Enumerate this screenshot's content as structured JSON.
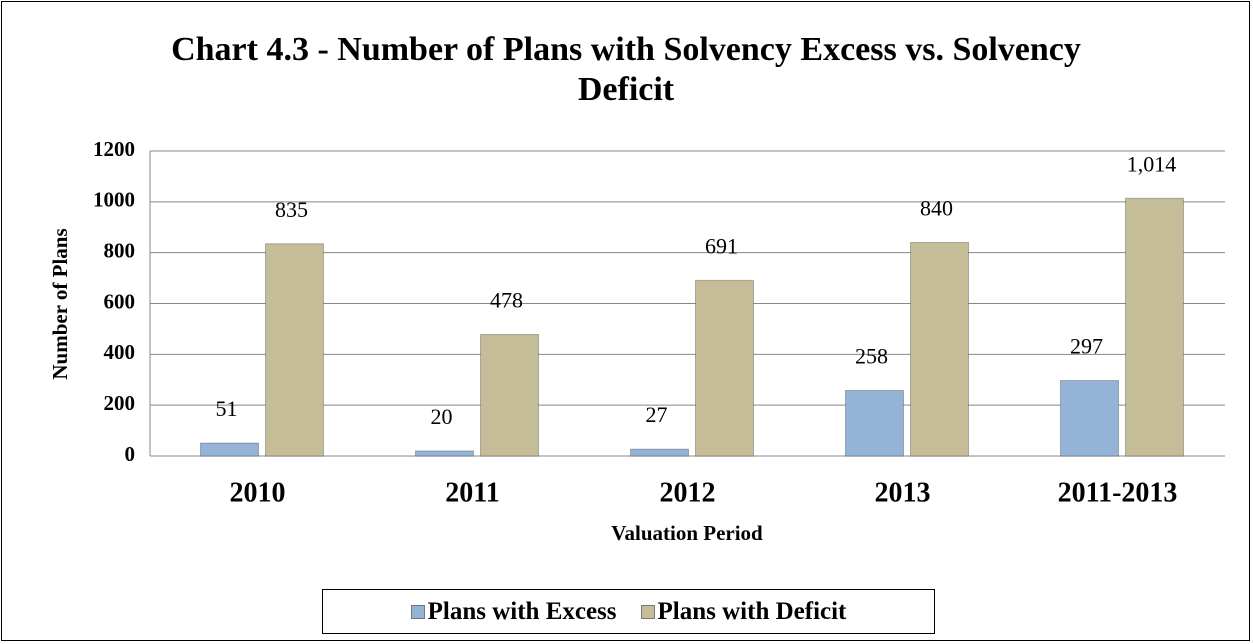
{
  "chart_data": {
    "type": "bar",
    "title": "Chart 4.3 - Number of Plans with Solvency Excess vs. Solvency Deficit",
    "x_label": "Valuation Period",
    "y_label": "Number of Plans",
    "categories": [
      "2010",
      "2011",
      "2012",
      "2013",
      "2011-2013"
    ],
    "series": [
      {
        "name": "Plans with Excess",
        "color": "#95b3d7",
        "values": [
          51,
          20,
          27,
          258,
          297
        ]
      },
      {
        "name": "Plans with Deficit",
        "color": "#c4bd97",
        "values": [
          835,
          478,
          691,
          840,
          1014
        ],
        "value_labels": [
          "835",
          "478",
          "691",
          "840",
          "1,014"
        ]
      }
    ],
    "ylim": [
      0,
      1200
    ],
    "yticks": [
      0,
      200,
      400,
      600,
      800,
      1000,
      1200
    ],
    "grid": true
  }
}
